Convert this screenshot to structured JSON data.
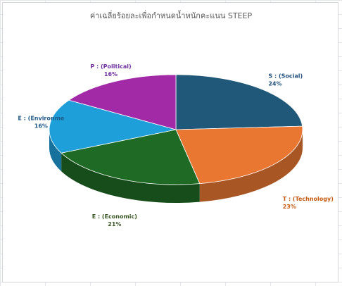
{
  "chart_data": {
    "type": "pie",
    "title": "ค่าเฉลี่ยร้อยละเพื่อกำหนดน้ำหนักคะแนน  STEEP",
    "categories": [
      "S : (Social)",
      "T : (Technology)",
      "E : (Economic)",
      "E : (Environme",
      "P : (Political)"
    ],
    "values": [
      24,
      23,
      21,
      16,
      16
    ],
    "value_labels": [
      "24%",
      "23%",
      "21%",
      "16%",
      "16%"
    ],
    "colors": [
      "#1f5878",
      "#e97732",
      "#1f6b25",
      "#1e9fd9",
      "#a22aa6"
    ],
    "label_colors": [
      "#1f4e79",
      "#c55a11",
      "#375623",
      "#1f5a87",
      "#7030a0"
    ],
    "style": "3d",
    "legend": "none"
  }
}
